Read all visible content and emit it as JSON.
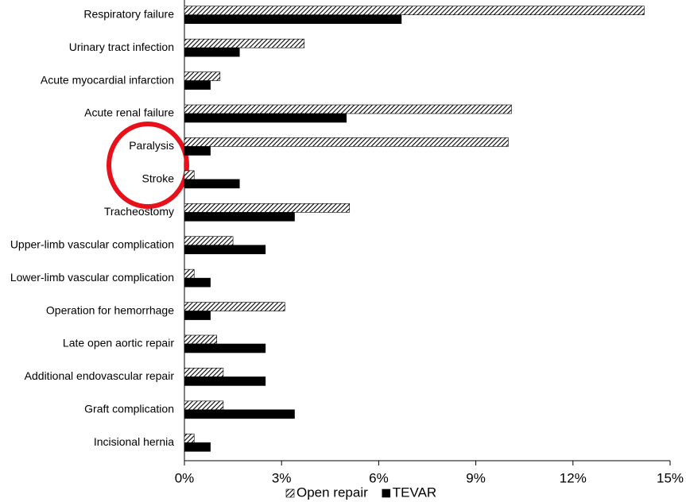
{
  "chart_data": {
    "type": "hbar",
    "categories": [
      "Respiratory failure",
      "Urinary tract infection",
      "Acute myocardial infarction",
      "Acute renal failure",
      "Paralysis",
      "Stroke",
      "Tracheostomy",
      "Upper-limb vascular complication",
      "Lower-limb vascular complication",
      "Operation for hemorrhage",
      "Late open aortic repair",
      "Additional endovascular repair",
      "Graft complication",
      "Incisional hernia"
    ],
    "series": [
      {
        "name": "Open repair",
        "color": "#000000",
        "pattern": "hatch",
        "values": [
          14.2,
          3.7,
          1.1,
          10.1,
          10.0,
          0.3,
          5.1,
          1.5,
          0.3,
          3.1,
          1.0,
          1.2,
          1.2,
          0.3
        ]
      },
      {
        "name": "TEVAR",
        "color": "#000000",
        "pattern": "solid",
        "values": [
          6.7,
          1.7,
          0.8,
          5.0,
          0.8,
          1.7,
          3.4,
          2.5,
          0.8,
          0.8,
          2.5,
          2.5,
          3.4,
          0.8
        ]
      }
    ],
    "xlim": [
      0,
      15
    ],
    "xticks": [
      {
        "value": 0,
        "label": "0%"
      },
      {
        "value": 3,
        "label": "3%"
      },
      {
        "value": 6,
        "label": "6%"
      },
      {
        "value": 9,
        "label": "9%"
      },
      {
        "value": 12,
        "label": "12%"
      },
      {
        "value": 15,
        "label": "15%"
      }
    ],
    "grid": false,
    "legend": "bottom"
  }
}
